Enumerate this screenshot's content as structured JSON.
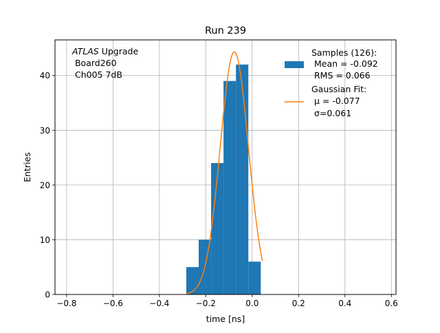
{
  "chart_data": {
    "type": "bar",
    "title": "Run 239",
    "xlabel": "time [ns]",
    "ylabel": "Entries",
    "xlim": [
      -0.85,
      0.62
    ],
    "ylim": [
      0,
      46.5
    ],
    "xticks": [
      -0.8,
      -0.6,
      -0.4,
      -0.2,
      0.0,
      0.2,
      0.4,
      0.6
    ],
    "xtick_labels": [
      "−0.8",
      "−0.6",
      "−0.4",
      "−0.2",
      "0.0",
      "0.2",
      "0.4",
      "0.6"
    ],
    "yticks": [
      0,
      10,
      20,
      30,
      40
    ],
    "ytick_labels": [
      "0",
      "10",
      "20",
      "30",
      "40"
    ],
    "grid": true,
    "legend_position": "top-right",
    "annotation": {
      "line1_italic": "ATLAS",
      "line1_rest": " Upgrade",
      "line2": " Board260",
      "line3": " Ch005 7dB"
    },
    "histogram": {
      "name": "Samples (126):",
      "color": "#1f77b4",
      "bin_edges": [
        -0.284,
        -0.2305,
        -0.177,
        -0.1235,
        -0.07,
        -0.0165,
        0.037
      ],
      "counts": [
        5,
        10,
        24,
        39,
        42,
        6
      ],
      "stats": [
        " Mean = -0.092",
        " RMS = 0.066"
      ]
    },
    "fit": {
      "name": "Gaussian Fit:",
      "color": "#ff7f0e",
      "mu": -0.077,
      "sigma": 0.061,
      "amplitude": 44.3,
      "x_range": [
        -0.284,
        0.0445
      ],
      "param_lines": [
        " μ = -0.077",
        " σ=0.061"
      ]
    }
  }
}
